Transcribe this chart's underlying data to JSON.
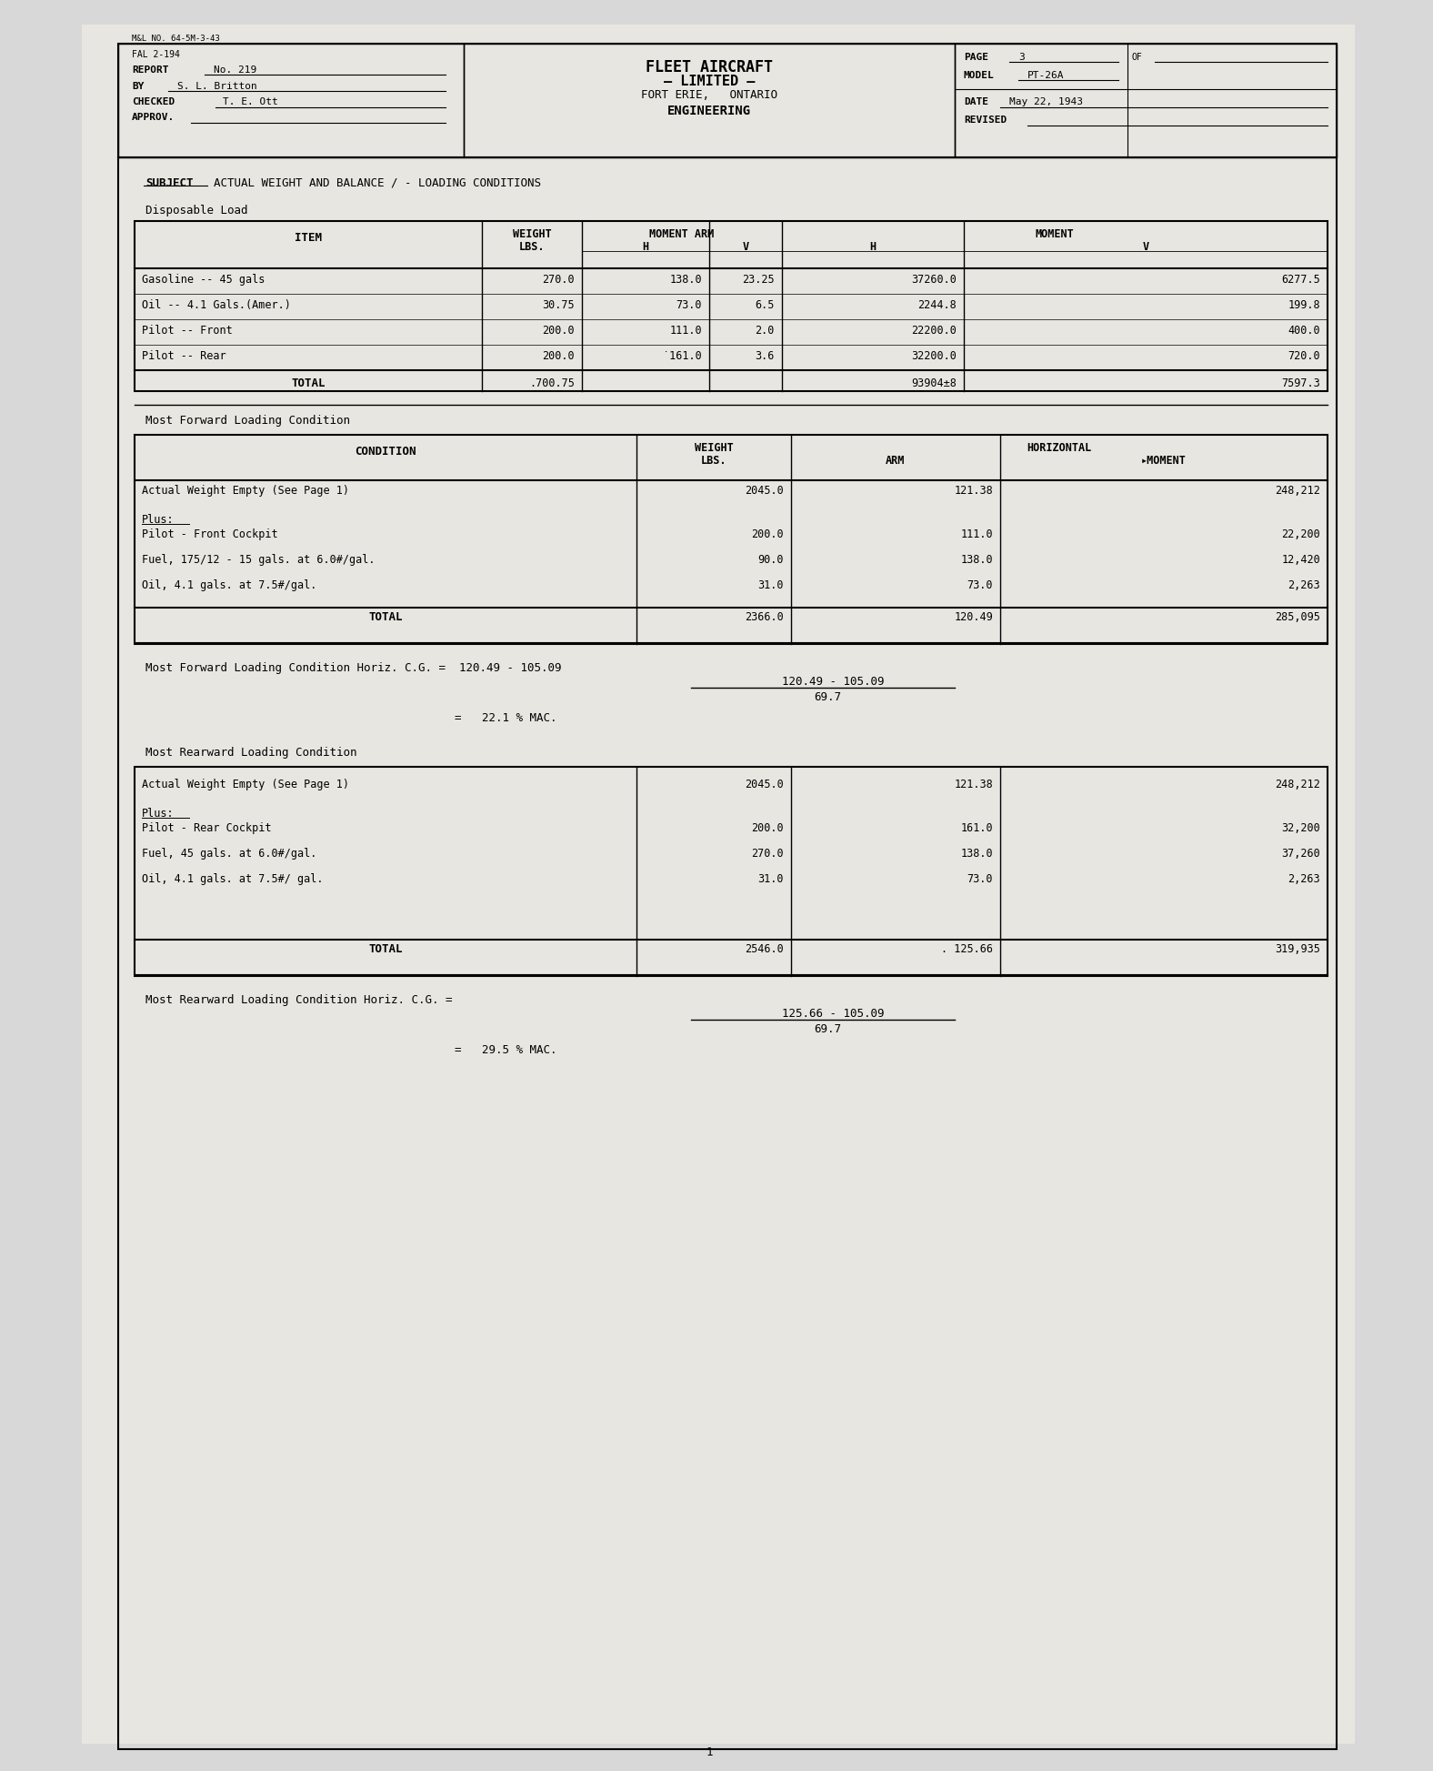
{
  "bg_color": "#d8d8d8",
  "paper_color": "#e8e6e0",
  "header": {
    "mal_no": "M&L NO. 64-5M-3-43",
    "fal": "FAL 2-194",
    "report": "No. 219",
    "by": "S. L. Britton",
    "checked": "T. E. Ott",
    "approv": "",
    "company": "FLEET AIRCRAFT\n— LIMITED —\nFORT ERIE,   ONTARIO\nENGINEERING",
    "page": "3",
    "of": "",
    "model": "PT-26A",
    "date": "May 22, 1943",
    "revised": ""
  },
  "subject": "SUBJECT  ACTUAL WEIGHT AND BALANCE / - LOADING CONDITIONS",
  "section1_title": "Disposable Load",
  "table1_headers": [
    "ITEM",
    "WEIGHT\nLBS.",
    "MOMENT ARM\nH",
    "V",
    "MOMENT\nH",
    "V"
  ],
  "table1_rows": [
    [
      "Gasoline -- 45 gals",
      "270.0",
      "138.0",
      "23.25",
      "37260.0",
      "6277.5"
    ],
    [
      "Oil -- 4.1 Gals.(Amer.)",
      "30.75",
      "73.0",
      "6.5",
      "2244.8",
      "199.8"
    ],
    [
      "Pilot -- Front",
      "200.0",
      "111.0",
      "2.0",
      "22200.0",
      "400.0"
    ],
    [
      "Pilot -- Rear",
      "200.0",
      "˙161.0",
      "3.6",
      "32200.0",
      "720.0"
    ]
  ],
  "table1_total": [
    "TOTAL",
    ".700.75",
    "",
    "",
    "93904±8",
    "7597.3"
  ],
  "section2_title": "Most Forward Loading Condition",
  "table2_headers": [
    "CONDITION",
    "WEIGHT\nLBS.",
    "HORIZONTAL\nARM",
    "MOMENT"
  ],
  "table2_rows": [
    [
      "Actual Weight Empty (See Page 1)",
      "2045.0",
      "121.38",
      "248,212"
    ],
    [
      "Plus:",
      "",
      "",
      ""
    ],
    [
      "Pilot - Front Cockpit",
      "200.0",
      "111.0",
      "22,200"
    ],
    [
      "Fuel, 175/12 - 15 gals. at 6.0#/gal.",
      "90.0",
      "138.0",
      "12,420"
    ],
    [
      "Oil, 4.1 gals. at 7.5#/gal.",
      "31.0",
      "73.0",
      "2,263"
    ]
  ],
  "table2_total": [
    "TOTAL",
    "2366.0",
    "120.49",
    "285,095"
  ],
  "forward_formula": "Most Forward Loading Condition Horiz. C.G. =  120.49 - 105.09\n                                                       69.7\n\n                                          =   22.1 % MAC.",
  "section3_title": "Most Rearward Loading Condition",
  "table3_rows": [
    [
      "Actual Weight Empty (See Page 1)",
      "2045.0",
      "121.38",
      "248,212"
    ],
    [
      "Plus:",
      "",
      "",
      ""
    ],
    [
      "Pilot - Rear Cockpit",
      "200.0",
      "161.0",
      "32,200"
    ],
    [
      "Fuel, 45 gals. at 6.0#/gal.",
      "270.0",
      "138.0",
      "37,260"
    ],
    [
      "Oil, 4.1 gals. at 7.5#/ gal.",
      "31.0",
      "73.0",
      "2,263"
    ]
  ],
  "table3_total": [
    "TOTAL",
    "2546.0",
    ". 125.66",
    "319,935"
  ],
  "rearward_formula": "Most Rearward Loading Condition Horiz. C.G. =  125.66 - 105.09\n                                                        69.7\n\n                                           =   29.5 % MAC."
}
